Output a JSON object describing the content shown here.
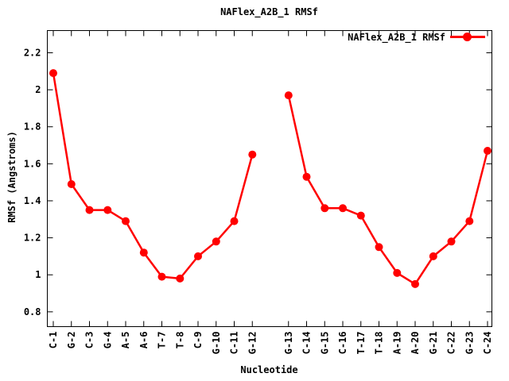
{
  "chart_data": {
    "type": "line",
    "title": "NAFlex_A2B_1 RMSf",
    "xlabel": "Nucleotide",
    "ylabel": "RMSf (Angstroms)",
    "legend": {
      "label": "NAFlex_A2B_1 RMSf",
      "position": "inside-top-right",
      "marker": "filled-circle"
    },
    "categories": [
      "C-1",
      "G-2",
      "C-3",
      "G-4",
      "A-5",
      "A-6",
      "T-7",
      "T-8",
      "C-9",
      "G-10",
      "C-11",
      "G-12",
      "G-13",
      "C-14",
      "G-15",
      "C-16",
      "T-17",
      "T-18",
      "A-19",
      "A-20",
      "G-21",
      "C-22",
      "G-23",
      "C-24"
    ],
    "values": [
      2.09,
      1.49,
      1.35,
      1.35,
      1.29,
      1.12,
      0.99,
      0.98,
      1.1,
      1.18,
      1.29,
      1.65,
      1.97,
      1.53,
      1.36,
      1.36,
      1.32,
      1.15,
      1.01,
      0.95,
      1.1,
      1.18,
      1.29,
      1.67
    ],
    "gap_after_index": 11,
    "ylim": [
      0.72,
      2.32
    ],
    "yticks": {
      "values": [
        0.8,
        1.0,
        1.2,
        1.4,
        1.6,
        1.8,
        2.0,
        2.2
      ],
      "labels": [
        "0.8",
        "1",
        "1.2",
        "1.4",
        "1.6",
        "1.8",
        "2",
        "2.2"
      ]
    },
    "grid": false,
    "series_color": "#ff0000",
    "axis_color": "#000000",
    "background": "#ffffff"
  }
}
